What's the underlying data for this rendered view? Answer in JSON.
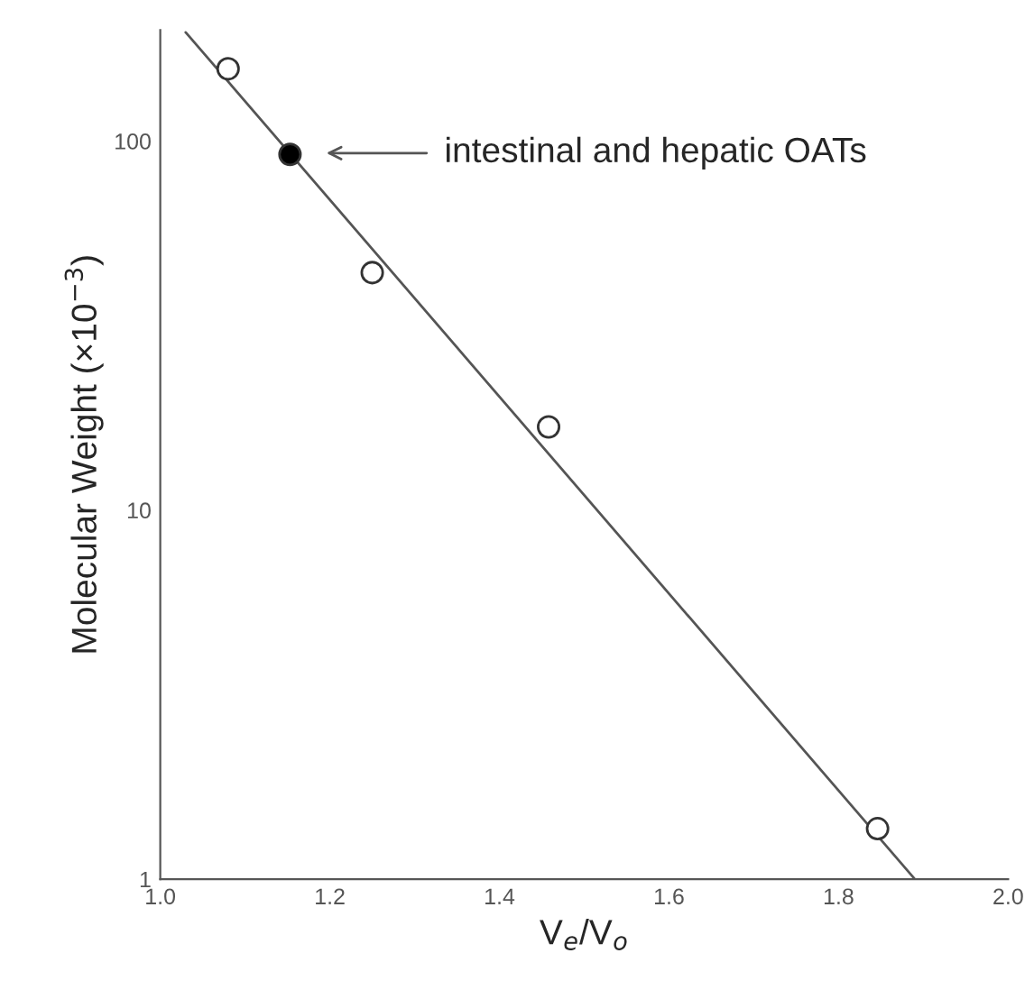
{
  "chart_data": {
    "type": "scatter",
    "xlabel": "V$_{e}$/V$_{o}$",
    "ylabel": "Molecular Weight (×10$^{−3}$)",
    "xlim": [
      1.0,
      2.0
    ],
    "xticks": [
      {
        "value": 1.0,
        "label": "1.0"
      },
      {
        "value": 1.2,
        "label": "1.2"
      },
      {
        "value": 1.4,
        "label": "1.4"
      },
      {
        "value": 1.6,
        "label": "1.6"
      },
      {
        "value": 1.8,
        "label": "1.8"
      },
      {
        "value": 2.0,
        "label": "2.0"
      }
    ],
    "ylim": [
      1,
      200
    ],
    "yticks": [
      1,
      10,
      100
    ],
    "log": "y",
    "grid": false,
    "legend": false,
    "series": [
      {
        "color": "#ffffff",
        "marker": "circle",
        "x": [
          1.08,
          1.25,
          1.458,
          1.846
        ],
        "values": [
          157,
          44,
          16.8,
          1.37
        ]
      },
      {
        "color": "#000000",
        "marker": "circle",
        "x": [
          1.153
        ],
        "values": [
          92
        ]
      },
      {
        "type": "line",
        "marker": "none",
        "color": "#555555",
        "x": [
          1.03,
          1.89
        ],
        "values": [
          197,
          1
        ]
      }
    ],
    "annotations": [
      "intestinal and hepatic OATs"
    ]
  }
}
